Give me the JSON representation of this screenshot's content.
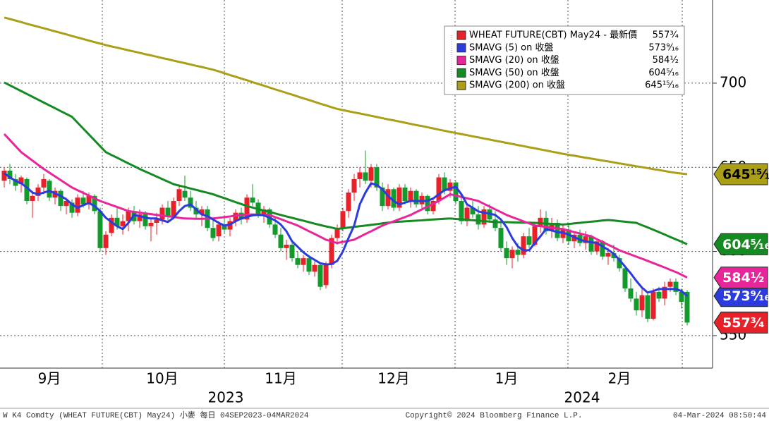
{
  "chart_data": {
    "type": "candlestick",
    "name": "WHEAT FUTURE(CBT) May24 - 最新價",
    "color": "#e8202a",
    "text_color": "#ffffff",
    "last": 557.75,
    "last_label": "557³⁄₄",
    "up_color": "#e8202a",
    "down_color": "#129a2c",
    "categories": [
      null,
      null,
      null,
      null,
      null,
      null,
      null,
      null,
      "9月",
      null,
      null,
      null,
      null,
      null,
      null,
      null,
      null,
      null,
      null,
      null,
      null,
      null,
      null,
      null,
      null,
      null,
      null,
      null,
      "10月",
      null,
      null,
      null,
      null,
      null,
      null,
      null,
      null,
      null,
      null,
      null,
      null,
      null,
      null,
      null,
      null,
      null,
      null,
      null,
      null,
      "11月",
      null,
      null,
      null,
      null,
      null,
      null,
      null,
      null,
      null,
      null,
      null,
      null,
      null,
      null,
      null,
      null,
      null,
      null,
      null,
      "12月",
      null,
      null,
      null,
      null,
      null,
      null,
      null,
      null,
      null,
      null,
      null,
      null,
      null,
      null,
      null,
      null,
      null,
      null,
      null,
      "1月",
      null,
      null,
      null,
      null,
      null,
      null,
      null,
      null,
      null,
      null,
      null,
      null,
      null,
      null,
      null,
      null,
      null,
      null,
      null,
      "2月",
      null,
      null,
      null,
      null,
      null,
      null,
      null,
      null,
      null,
      null,
      null,
      null
    ],
    "open": [
      642,
      648,
      643,
      640,
      643,
      630,
      633,
      638,
      642,
      632,
      636,
      627,
      629,
      623,
      632,
      628,
      633,
      624,
      602,
      611,
      620,
      615,
      618,
      624,
      618,
      622,
      615,
      617,
      619,
      626,
      621,
      630,
      636,
      632,
      626,
      622,
      625,
      614,
      609,
      616,
      613,
      618,
      623,
      619,
      632,
      629,
      622,
      625,
      616,
      610,
      602,
      604,
      596,
      592,
      596,
      588,
      592,
      580,
      592,
      608,
      614,
      624,
      635,
      643,
      647,
      642,
      650,
      638,
      627,
      637,
      626,
      638,
      630,
      636,
      628,
      633,
      624,
      630,
      644,
      636,
      641,
      630,
      618,
      626,
      622,
      616,
      625,
      619,
      614,
      602,
      596,
      601,
      598,
      609,
      604,
      615,
      620,
      612,
      617,
      608,
      613,
      606,
      610,
      605,
      609,
      600,
      606,
      597,
      599,
      596,
      590,
      578,
      572,
      565,
      574,
      560,
      576,
      572,
      579,
      582,
      576,
      576
    ],
    "high": [
      650,
      652,
      646,
      645,
      644,
      636,
      640,
      646,
      643,
      638,
      637,
      632,
      631,
      634,
      636,
      635,
      634,
      626,
      612,
      622,
      627,
      622,
      626,
      627,
      625,
      624,
      620,
      623,
      628,
      630,
      632,
      640,
      645,
      636,
      630,
      627,
      627,
      620,
      618,
      621,
      620,
      625,
      626,
      634,
      640,
      631,
      627,
      626,
      620,
      614,
      607,
      605,
      600,
      598,
      597,
      594,
      593,
      594,
      610,
      616,
      626,
      637,
      646,
      650,
      660,
      652,
      652,
      641,
      640,
      638,
      640,
      640,
      638,
      637,
      635,
      634,
      632,
      646,
      647,
      643,
      642,
      632,
      628,
      630,
      627,
      627,
      628,
      624,
      618,
      606,
      603,
      605,
      611,
      614,
      617,
      625,
      624,
      620,
      619,
      616,
      617,
      612,
      613,
      612,
      610,
      608,
      607,
      602,
      604,
      598,
      592,
      584,
      576,
      578,
      575,
      578,
      579,
      582,
      584,
      584,
      578,
      577
    ],
    "low": [
      638,
      640,
      636,
      635,
      628,
      620,
      630,
      634,
      630,
      628,
      624,
      622,
      620,
      621,
      626,
      625,
      622,
      600,
      598,
      609,
      613,
      610,
      612,
      616,
      614,
      613,
      606,
      610,
      616,
      618,
      619,
      627,
      630,
      624,
      619,
      615,
      612,
      606,
      606,
      611,
      609,
      615,
      616,
      617,
      627,
      620,
      617,
      614,
      608,
      600,
      595,
      594,
      590,
      588,
      586,
      585,
      577,
      578,
      590,
      604,
      612,
      620,
      630,
      638,
      640,
      638,
      636,
      624,
      625,
      624,
      624,
      628,
      626,
      626,
      625,
      622,
      622,
      628,
      634,
      632,
      628,
      616,
      615,
      620,
      613,
      614,
      617,
      612,
      600,
      592,
      590,
      594,
      596,
      602,
      603,
      611,
      610,
      608,
      606,
      605,
      604,
      602,
      603,
      601,
      598,
      598,
      595,
      592,
      594,
      588,
      576,
      570,
      562,
      561,
      558,
      559,
      570,
      568,
      576,
      574,
      566,
      556
    ],
    "close": [
      648,
      643,
      639,
      644,
      630,
      633,
      638,
      643,
      632,
      636,
      627,
      630,
      623,
      632,
      628,
      633,
      624,
      602,
      610,
      620,
      615,
      618,
      624,
      618,
      622,
      615,
      617,
      619,
      626,
      621,
      630,
      637,
      632,
      626,
      622,
      625,
      614,
      608,
      616,
      613,
      618,
      623,
      619,
      632,
      629,
      622,
      625,
      616,
      610,
      602,
      604,
      596,
      592,
      596,
      588,
      592,
      579,
      592,
      608,
      614,
      624,
      635,
      643,
      647,
      642,
      650,
      638,
      627,
      637,
      626,
      638,
      630,
      636,
      628,
      633,
      624,
      630,
      644,
      636,
      641,
      630,
      618,
      626,
      622,
      616,
      625,
      619,
      614,
      602,
      596,
      601,
      598,
      609,
      604,
      615,
      620,
      612,
      617,
      608,
      613,
      606,
      610,
      605,
      609,
      600,
      606,
      597,
      599,
      596,
      590,
      578,
      572,
      565,
      574,
      560,
      576,
      572,
      579,
      582,
      576,
      570,
      557.75
    ],
    "series": [
      {
        "name": "SMAVG (5)  on 收盤",
        "color": "#2b3be0",
        "text_color": "#ffffff",
        "last": 573.5625,
        "last_label": "573⁹⁄₁₆",
        "values": [
          646.5,
          644,
          642,
          640.5,
          638,
          635,
          634,
          635,
          636,
          634.5,
          633,
          631,
          628,
          626,
          627.5,
          628.8,
          627,
          624,
          620,
          617.5,
          615,
          613.3,
          617,
          621.7,
          621,
          620,
          619.6,
          619.6,
          618.5,
          617.5,
          620,
          624,
          627,
          628,
          625,
          622,
          621,
          619,
          617,
          615.4,
          616,
          618,
          619.6,
          620.5,
          621.5,
          621.7,
          621.5,
          620,
          618.5,
          616,
          612,
          606,
          602.8,
          599.5,
          597,
          595,
          593,
          592.3,
          592.5,
          594.4,
          600,
          608,
          615.4,
          628,
          635,
          640.5,
          639.5,
          637,
          633,
          630,
          628,
          629,
          630,
          630,
          630,
          630,
          631.5,
          634,
          636.3,
          637.5,
          638.4,
          634,
          628,
          626,
          623.8,
          623,
          622.5,
          621.7,
          619,
          614.5,
          608,
          603,
          600.7,
          600.7,
          605,
          609,
          613.3,
          612.5,
          611.5,
          611.2,
          610,
          608.5,
          607,
          606,
          605.5,
          605,
          603,
          601,
          598.6,
          595,
          591,
          587,
          582.5,
          578.5,
          575.6,
          576.5,
          577.7,
          577.7,
          577.7,
          577.7,
          576.5,
          573.6
        ]
      },
      {
        "name": "SMAVG (20)  on 收盤",
        "color": "#e8259a",
        "text_color": "#ffffff",
        "last": 584.5,
        "last_label": "584¹⁄₂",
        "values": [
          669.8,
          666.2,
          662.6,
          659,
          656.5,
          654,
          651.5,
          649,
          646.8,
          644.6,
          642.4,
          640.2,
          638,
          636.4,
          634.8,
          633.2,
          631.6,
          630,
          628.8,
          627.6,
          626.4,
          625.2,
          624,
          623.5,
          623.1,
          622.6,
          622.2,
          621.7,
          621.3,
          620.9,
          620.5,
          620,
          619.6,
          619.5,
          619.4,
          619.4,
          619.5,
          619.6,
          620,
          620.4,
          620.8,
          621.3,
          621.7,
          621.9,
          622,
          621.9,
          621.8,
          621.7,
          620.4,
          619.2,
          617.9,
          616.7,
          615.4,
          613.7,
          612,
          610.4,
          608.7,
          607,
          606,
          605,
          605.7,
          606.3,
          607,
          608.7,
          610.4,
          612,
          613.7,
          615.4,
          616.7,
          617.9,
          619.2,
          620.4,
          621.7,
          623.4,
          625,
          626.7,
          628.3,
          630,
          632,
          634,
          633.2,
          632.4,
          631.6,
          630.8,
          630,
          628.3,
          626.7,
          625,
          623.4,
          621.7,
          620.4,
          619.2,
          617.9,
          616.7,
          615.4,
          615,
          614.6,
          614.1,
          613.7,
          613.3,
          612.4,
          611.5,
          610.7,
          609.8,
          609,
          607.3,
          605.7,
          604,
          602.4,
          600.7,
          599.4,
          598.2,
          596.9,
          595.7,
          594.4,
          593.1,
          591.8,
          590.5,
          589.1,
          587.8,
          586.2,
          584.5
        ]
      },
      {
        "name": "SMAVG (50)  on 收盤",
        "color": "#168a22",
        "text_color": "#ffffff",
        "last": 604.3125,
        "last_label": "604⁵⁄₁₆",
        "values": [
          700.4,
          698.7,
          697,
          695.3,
          693.6,
          691.9,
          690.2,
          688.5,
          686.8,
          685.1,
          683.4,
          681.7,
          680,
          676.5,
          673,
          669.5,
          666,
          662.5,
          659,
          657.3,
          655.7,
          654,
          652.3,
          650.7,
          649,
          647.5,
          646,
          644.5,
          643,
          641.5,
          640,
          639.1,
          638.3,
          637.4,
          636.6,
          635.7,
          634.9,
          634,
          632.8,
          631.7,
          630.5,
          629.3,
          628.2,
          627,
          626.1,
          625.2,
          624.3,
          623.5,
          622.6,
          621.7,
          620.8,
          620,
          619.1,
          618.3,
          617.4,
          616.5,
          615.7,
          614.9,
          614.2,
          613.4,
          613.8,
          614.2,
          614.6,
          615,
          615.4,
          615.8,
          616.2,
          616.7,
          617.1,
          617.5,
          617.7,
          617.9,
          618.1,
          618.3,
          618.5,
          618.8,
          619,
          619.2,
          619.4,
          619.6,
          619.3,
          619.1,
          618.8,
          618.6,
          618.3,
          618,
          617.8,
          617.5,
          617.4,
          617.4,
          617.3,
          617.2,
          617.1,
          617.1,
          617,
          616.8,
          616.6,
          616.4,
          616.2,
          616,
          616.3,
          616.7,
          617,
          617.4,
          617.7,
          618,
          618.4,
          618.7,
          618.4,
          618,
          617.7,
          617.3,
          617,
          615.6,
          614.3,
          612.9,
          611.5,
          610.1,
          608.6,
          607.2,
          605.8,
          604.3
        ]
      },
      {
        "name": "SMAVG (200)  on 收盤",
        "color": "#aa9f17",
        "text_color": "#000000",
        "last": 645.9375,
        "last_label": "645¹⁵⁄₁₆",
        "values": [
          739,
          738.1,
          737.2,
          736.3,
          735.3,
          734.4,
          733.5,
          732.6,
          731.7,
          730.8,
          729.9,
          729,
          728,
          727.1,
          726.2,
          725.3,
          724.4,
          723.5,
          722.6,
          721.8,
          721.1,
          720.3,
          719.5,
          718.8,
          718,
          717.2,
          716.5,
          715.7,
          714.9,
          714.2,
          713.4,
          712.6,
          711.9,
          711.1,
          710.3,
          709.6,
          708.8,
          708,
          707,
          705.9,
          704.8,
          703.8,
          702.7,
          701.7,
          700.6,
          699.5,
          698.5,
          697.4,
          696.3,
          695.3,
          694.2,
          693.2,
          692.1,
          691,
          690,
          688.9,
          687.8,
          686.8,
          685.7,
          684.7,
          684,
          683.3,
          682.6,
          682,
          681.3,
          680.6,
          679.9,
          679.2,
          678.5,
          677.9,
          677.2,
          676.5,
          675.8,
          675.1,
          674.5,
          673.8,
          673.1,
          672.4,
          671.7,
          671,
          670.4,
          669.7,
          669.1,
          668.4,
          667.8,
          667.1,
          666.5,
          665.8,
          665.2,
          664.5,
          663.9,
          663.2,
          662.6,
          661.9,
          661.3,
          660.6,
          660,
          659.3,
          658.7,
          658,
          657.4,
          656.9,
          656.3,
          655.7,
          655.2,
          654.6,
          654,
          653.5,
          652.9,
          652.3,
          651.8,
          651.2,
          650.6,
          650.1,
          649.5,
          648.9,
          648.4,
          647.8,
          647.2,
          646.7,
          646.3,
          645.9
        ]
      }
    ],
    "ylim": [
      530.7,
      749.4
    ],
    "yticks": [
      550,
      600,
      650,
      700
    ],
    "grid": true,
    "year_labels": [
      "2023",
      "2024"
    ]
  },
  "footer": {
    "left": "W K4 Comdty (WHEAT FUTURE(CBT) May24) 小麥  每日 04SEP2023-04MAR2024",
    "center": "Copyright© 2024 Bloomberg Finance L.P.",
    "right": "04-Mar-2024 08:50:44"
  }
}
